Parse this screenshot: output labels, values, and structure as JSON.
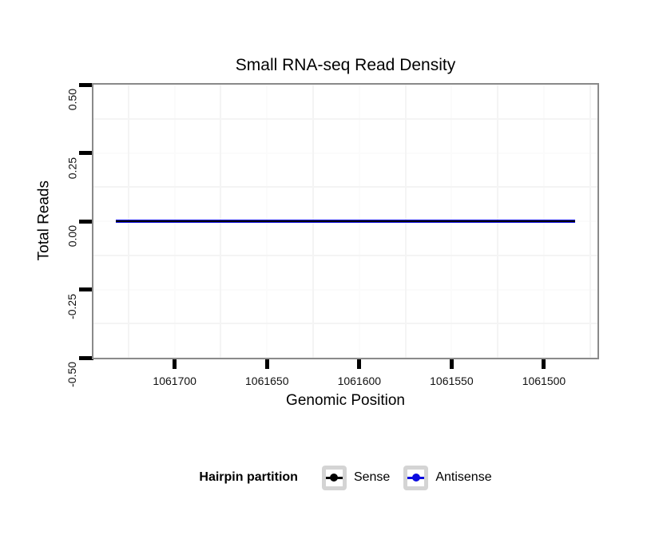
{
  "title": "Small RNA-seq Read Density",
  "chart_data": {
    "type": "line",
    "title": "Small RNA-seq Read Density",
    "xlabel": "Genomic Position",
    "ylabel": "Total Reads",
    "grid": "minor gridlines visible, white panel background, gray panel border",
    "legend_position": "bottom",
    "x_axis": {
      "reversed": true,
      "domain": [
        1061744,
        1061471
      ],
      "ticks": [
        1061700,
        1061650,
        1061600,
        1061550,
        1061500
      ],
      "tick_labels": [
        "1061700",
        "1061650",
        "1061600",
        "1061550",
        "1061500"
      ],
      "minor_ticks": [
        1061725,
        1061675,
        1061625,
        1061575,
        1061525,
        1061475
      ]
    },
    "y_axis": {
      "domain": [
        0.5,
        -0.5
      ],
      "ticks": [
        0.5,
        0.25,
        0,
        -0.25,
        -0.5
      ],
      "tick_labels": [
        "0.50",
        "0.25",
        "0.00",
        "-0.25",
        "-0.50"
      ],
      "minor_ticks": [
        0.375,
        0.125,
        -0.125,
        -0.375
      ]
    },
    "series": [
      {
        "name": "Sense",
        "color": "#000000",
        "x_start": 1061732,
        "x_end": 1061483,
        "value": 0
      },
      {
        "name": "Antisense",
        "color": "#0b0bdf",
        "x_start": 1061732,
        "x_end": 1061483,
        "value": 0
      }
    ]
  },
  "axis": {
    "x_title": "Genomic Position",
    "y_title": "Total Reads"
  },
  "legend": {
    "title": "Hairpin partition",
    "items": [
      {
        "label": "Sense",
        "color": "#000000"
      },
      {
        "label": "Antisense",
        "color": "#0b0bdf"
      }
    ]
  }
}
